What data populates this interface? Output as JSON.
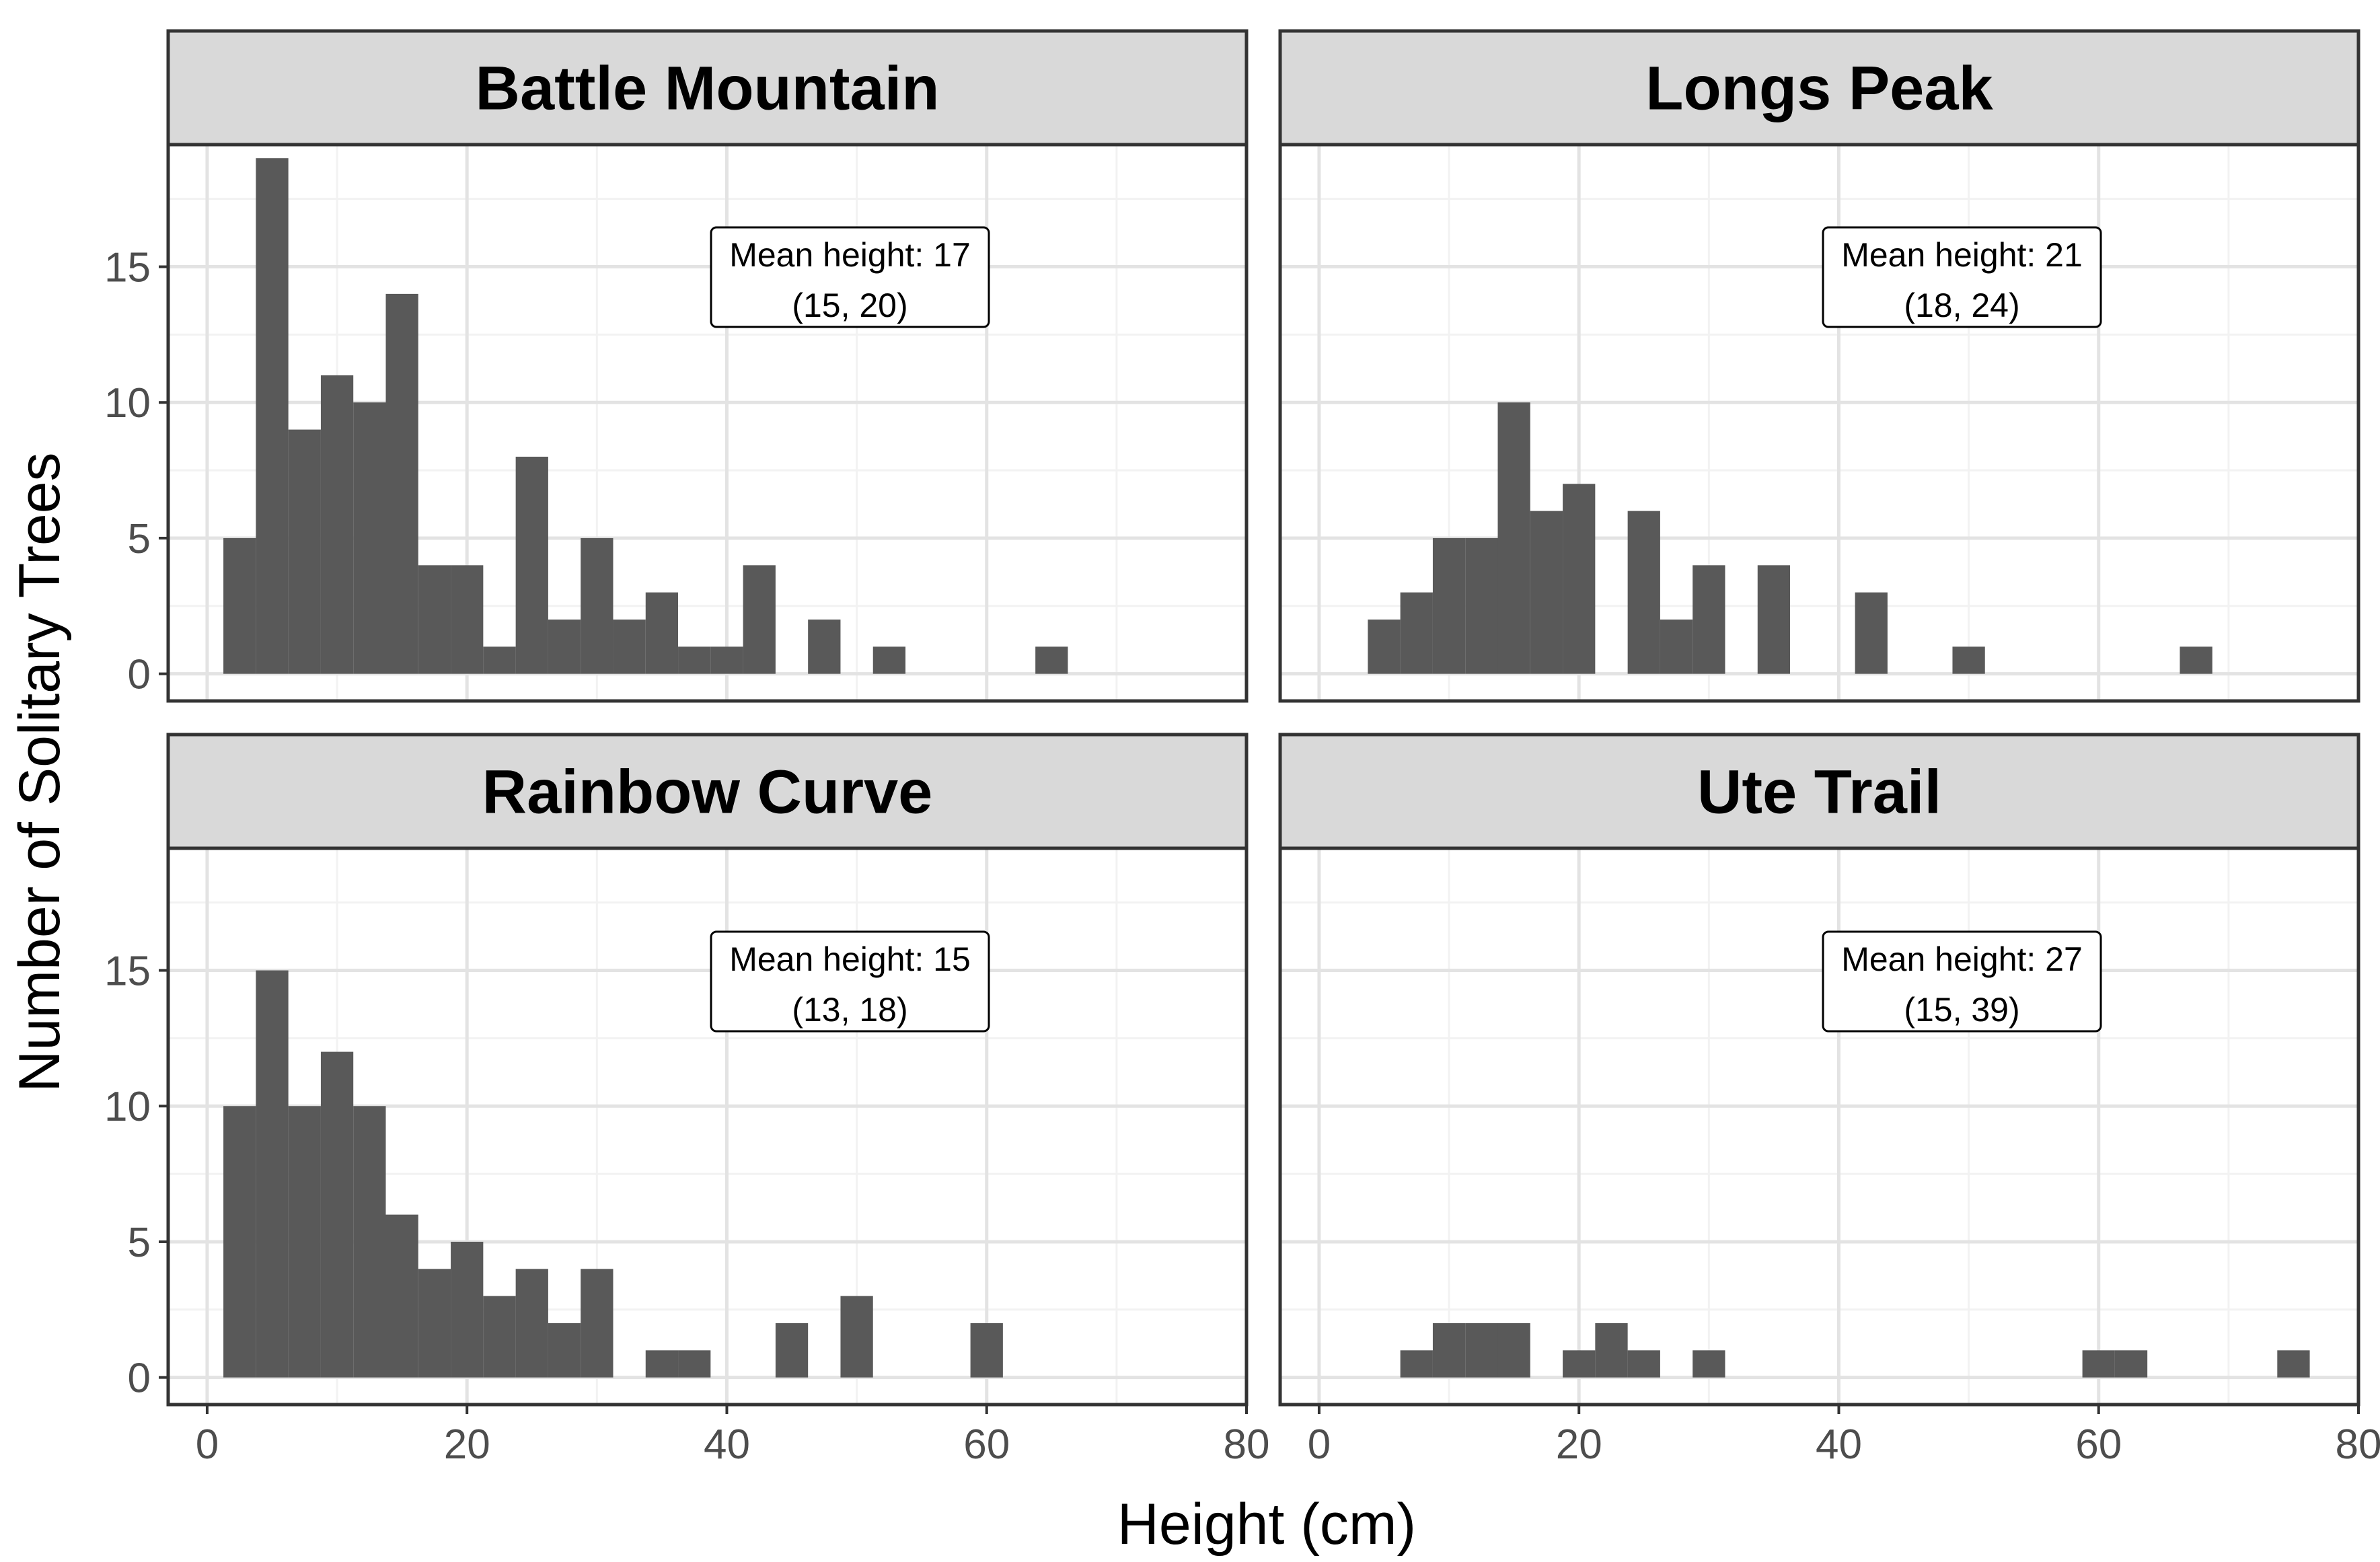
{
  "chart_data": {
    "type": "bar",
    "subtype": "faceted histogram",
    "xlabel": "Height (cm)",
    "ylabel": "Number of Solitary Trees",
    "xlim": [
      -3,
      80
    ],
    "ylim": [
      -1,
      19.5
    ],
    "x_ticks": [
      "0",
      "20",
      "40",
      "60",
      "80"
    ],
    "y_ticks": [
      "0",
      "5",
      "10",
      "15"
    ],
    "bin_width": 2.5,
    "bar_color": "#595959",
    "strip_color": "#d9d9d9",
    "grid": true,
    "panels": [
      {
        "name": "Battle Mountain",
        "annotation": {
          "line1": "Mean height: 17",
          "line2": "(15, 20)"
        },
        "bins": [
          {
            "x0": 1.25,
            "count": 5
          },
          {
            "x0": 3.75,
            "count": 19
          },
          {
            "x0": 6.25,
            "count": 9
          },
          {
            "x0": 8.75,
            "count": 11
          },
          {
            "x0": 11.25,
            "count": 10
          },
          {
            "x0": 13.75,
            "count": 14
          },
          {
            "x0": 16.25,
            "count": 4
          },
          {
            "x0": 18.75,
            "count": 4
          },
          {
            "x0": 21.25,
            "count": 1
          },
          {
            "x0": 23.75,
            "count": 8
          },
          {
            "x0": 26.25,
            "count": 2
          },
          {
            "x0": 28.75,
            "count": 5
          },
          {
            "x0": 31.25,
            "count": 2
          },
          {
            "x0": 33.75,
            "count": 3
          },
          {
            "x0": 36.25,
            "count": 1
          },
          {
            "x0": 38.75,
            "count": 1
          },
          {
            "x0": 41.25,
            "count": 4
          },
          {
            "x0": 46.25,
            "count": 2
          },
          {
            "x0": 51.25,
            "count": 1
          },
          {
            "x0": 63.75,
            "count": 1
          }
        ]
      },
      {
        "name": "Longs Peak",
        "annotation": {
          "line1": "Mean height: 21",
          "line2": "(18, 24)"
        },
        "bins": [
          {
            "x0": 3.75,
            "count": 2
          },
          {
            "x0": 6.25,
            "count": 3
          },
          {
            "x0": 8.75,
            "count": 5
          },
          {
            "x0": 11.25,
            "count": 5
          },
          {
            "x0": 13.75,
            "count": 10
          },
          {
            "x0": 16.25,
            "count": 6
          },
          {
            "x0": 18.75,
            "count": 7
          },
          {
            "x0": 23.75,
            "count": 6
          },
          {
            "x0": 26.25,
            "count": 2
          },
          {
            "x0": 28.75,
            "count": 4
          },
          {
            "x0": 33.75,
            "count": 4
          },
          {
            "x0": 41.25,
            "count": 3
          },
          {
            "x0": 48.75,
            "count": 1
          },
          {
            "x0": 66.25,
            "count": 1
          }
        ]
      },
      {
        "name": "Rainbow Curve",
        "annotation": {
          "line1": "Mean height: 15",
          "line2": "(13, 18)"
        },
        "bins": [
          {
            "x0": 1.25,
            "count": 10
          },
          {
            "x0": 3.75,
            "count": 15
          },
          {
            "x0": 6.25,
            "count": 10
          },
          {
            "x0": 8.75,
            "count": 12
          },
          {
            "x0": 11.25,
            "count": 10
          },
          {
            "x0": 13.75,
            "count": 6
          },
          {
            "x0": 16.25,
            "count": 4
          },
          {
            "x0": 18.75,
            "count": 5
          },
          {
            "x0": 21.25,
            "count": 3
          },
          {
            "x0": 23.75,
            "count": 4
          },
          {
            "x0": 26.25,
            "count": 2
          },
          {
            "x0": 28.75,
            "count": 4
          },
          {
            "x0": 33.75,
            "count": 1
          },
          {
            "x0": 36.25,
            "count": 1
          },
          {
            "x0": 43.75,
            "count": 2
          },
          {
            "x0": 48.75,
            "count": 3
          },
          {
            "x0": 58.75,
            "count": 2
          }
        ]
      },
      {
        "name": "Ute Trail",
        "annotation": {
          "line1": "Mean height: 27",
          "line2": "(15, 39)"
        },
        "bins": [
          {
            "x0": 6.25,
            "count": 1
          },
          {
            "x0": 8.75,
            "count": 2
          },
          {
            "x0": 11.25,
            "count": 2
          },
          {
            "x0": 13.75,
            "count": 2
          },
          {
            "x0": 18.75,
            "count": 1
          },
          {
            "x0": 21.25,
            "count": 2
          },
          {
            "x0": 23.75,
            "count": 1
          },
          {
            "x0": 28.75,
            "count": 1
          },
          {
            "x0": 58.75,
            "count": 1
          },
          {
            "x0": 61.25,
            "count": 1
          },
          {
            "x0": 73.75,
            "count": 1
          }
        ]
      }
    ]
  }
}
